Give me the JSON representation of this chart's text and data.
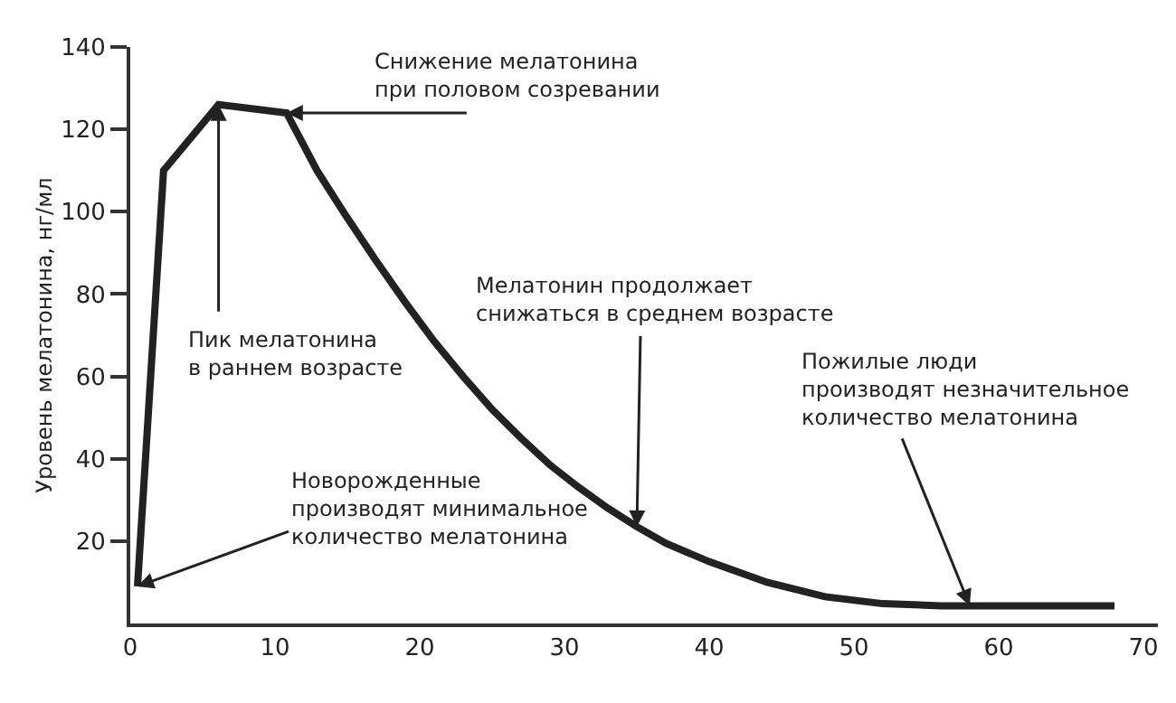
{
  "chart_data": {
    "type": "line",
    "ylabel": "Уровень мелатонина, нг/мл",
    "x": [
      0.5,
      2.3,
      6.1,
      10.8,
      12.9,
      14.9,
      17,
      19,
      21,
      23,
      25,
      27,
      29,
      31,
      33,
      35,
      37,
      40,
      44,
      48,
      52,
      56,
      58,
      68
    ],
    "series": [
      {
        "color": "#222222",
        "values": [
          9,
          110,
          126,
          124,
          110,
          99,
          88,
          78,
          68.5,
          60,
          52,
          45,
          38.5,
          33,
          28,
          23.5,
          19.5,
          15,
          10,
          6.5,
          4.8,
          4.3,
          4.3,
          4.3
        ]
      }
    ],
    "xlim": [
      0,
      71
    ],
    "ylim": [
      0,
      140
    ],
    "xticks": [
      0,
      10,
      20,
      30,
      40,
      50,
      60,
      70
    ],
    "yticks": [
      20,
      40,
      60,
      80,
      100,
      120,
      140
    ],
    "grid": false,
    "marker": "none",
    "line_style": "solid",
    "annotations": [
      {
        "text": "Снижение мелатонина\nпри половом созревании",
        "x": 10.8,
        "y": 124
      },
      {
        "text": "Пик мелатонина\nв раннем возрасте",
        "x": 6.1,
        "y": 126
      },
      {
        "text": "Мелатонин продолжает\nснижаться в среднем возрасте",
        "x": 35,
        "y": 23.5
      },
      {
        "text": "Пожилые люди\nпроизводят незначительное\nколичество мелатонина",
        "x": 58,
        "y": 4.3
      },
      {
        "text": "Новорожденные\nпроизводят минимальное\nколичество мелатонина",
        "x": 0.5,
        "y": 9
      }
    ]
  }
}
